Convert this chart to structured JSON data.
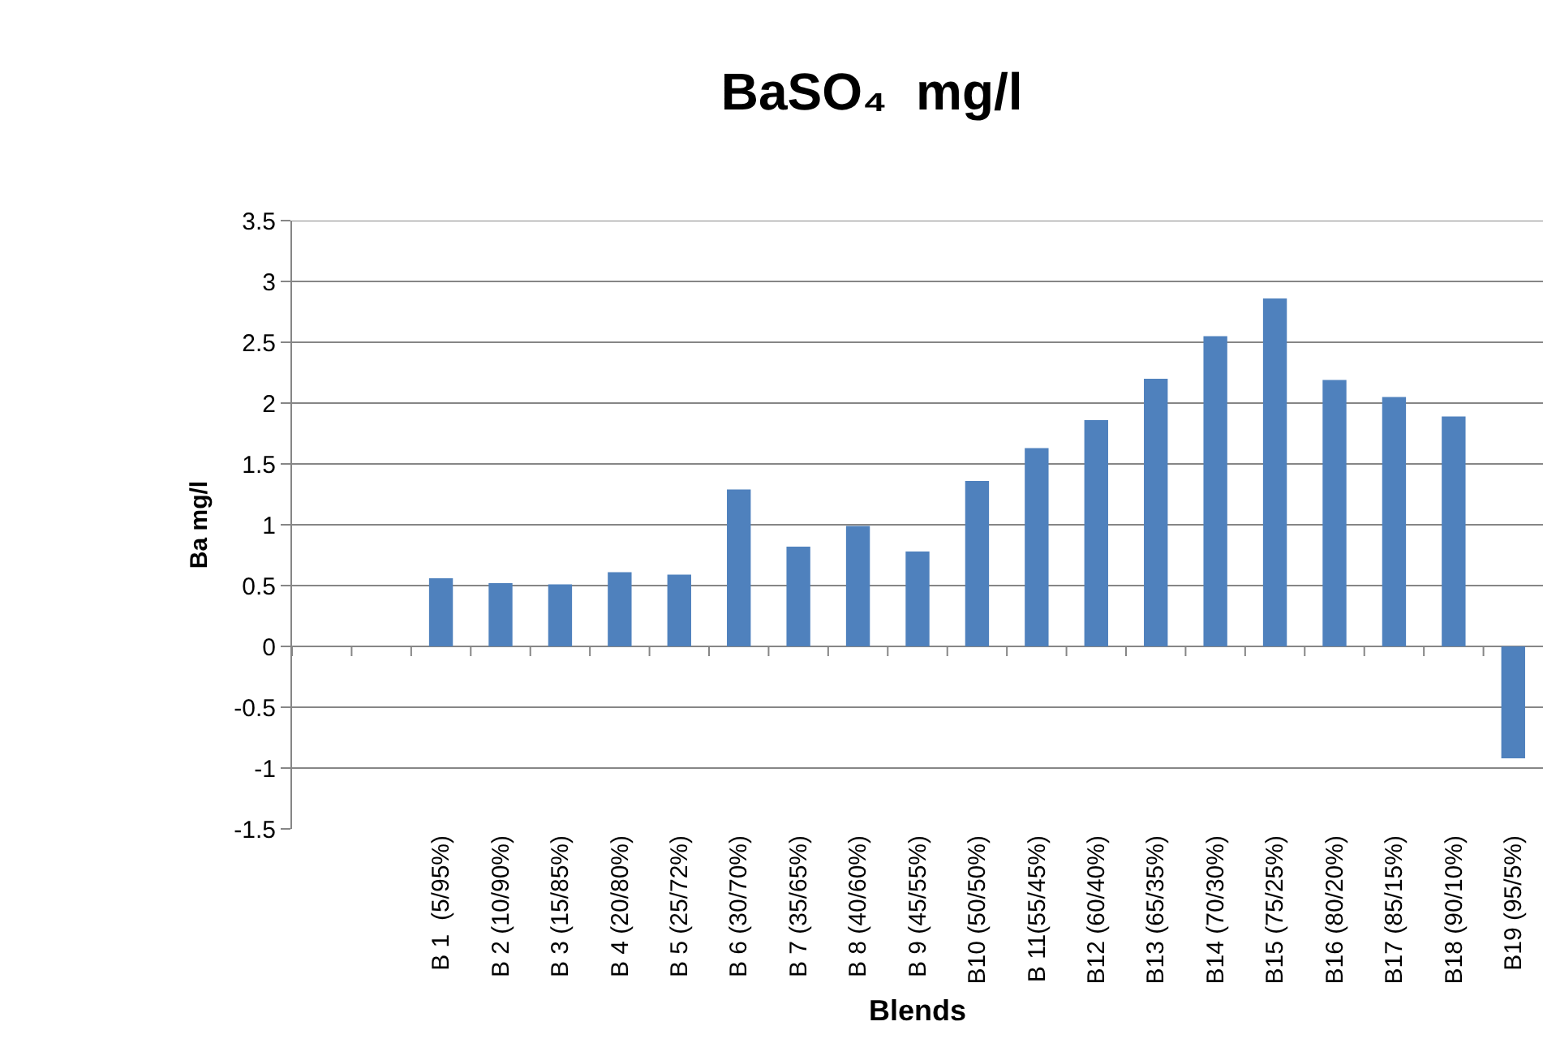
{
  "chart_data": {
    "type": "bar",
    "title": "BaSO₄  mg/l",
    "xlabel": "Blends",
    "ylabel": "Ba mg/l",
    "categories": [
      null,
      null,
      "B 1  (5/95%)",
      "B 2 (10/90%)",
      "B 3 (15/85%)",
      "B 4 (20/80%)",
      "B 5 (25/72%)",
      "B 6 (30/70%)",
      "B 7 (35/65%)",
      "B 8 (40/60%)",
      "B 9 (45/55%)",
      "B10 (50/50%)",
      "B 11(55/45%)",
      "B12 (60/40%)",
      "B13 (65/35%)",
      "B14 (70/30%)",
      "B15 (75/25%)",
      "B16 (80/20%)",
      "B17 (85/15%)",
      "B18 (90/10%)",
      "B19 (95/5%)"
    ],
    "values": [
      null,
      null,
      0.56,
      0.52,
      0.51,
      0.61,
      0.59,
      1.29,
      0.82,
      0.99,
      0.78,
      1.36,
      1.63,
      1.86,
      2.2,
      2.55,
      2.86,
      2.19,
      2.05,
      1.89,
      -0.92
    ],
    "color": "#4f81bd",
    "ylim": [
      -1.5,
      3.5
    ],
    "yticks": [
      -1.5,
      -1,
      -0.5,
      0,
      0.5,
      1,
      1.5,
      2,
      2.5,
      3,
      3.5
    ],
    "grid": "y"
  }
}
